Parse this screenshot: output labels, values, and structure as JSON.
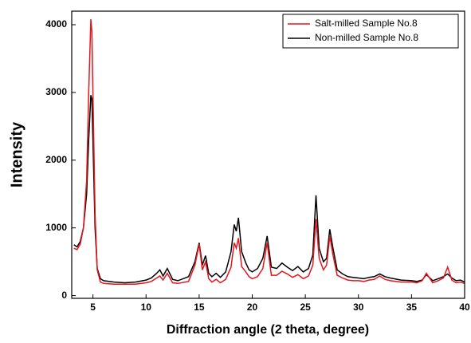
{
  "chart_data": {
    "type": "line",
    "xlabel": "Diffraction angle (2 theta, degree)",
    "ylabel": "Intensity",
    "xlim": [
      3,
      40
    ],
    "ylim": [
      -40,
      4200
    ],
    "xticks": [
      5,
      10,
      15,
      20,
      25,
      30,
      35,
      40
    ],
    "yticks": [
      0,
      1000,
      2000,
      3000,
      4000
    ],
    "legend": "upper right",
    "x": [
      3.2,
      3.5,
      3.8,
      4.1,
      4.4,
      4.6,
      4.8,
      4.9,
      5.0,
      5.2,
      5.4,
      5.7,
      6,
      7,
      8,
      9,
      10,
      10.5,
      11,
      11.3,
      11.6,
      12,
      12.5,
      13,
      14,
      14.6,
      15,
      15.3,
      15.6,
      15.9,
      16.2,
      16.6,
      17,
      17.5,
      18,
      18.3,
      18.5,
      18.7,
      19,
      19.4,
      19.7,
      20,
      20.5,
      21,
      21.4,
      21.8,
      22.3,
      22.8,
      23.3,
      23.8,
      24.3,
      24.8,
      25.3,
      25.7,
      26,
      26.3,
      26.7,
      27,
      27.3,
      27.6,
      28,
      28.5,
      29,
      29.5,
      30,
      30.5,
      31,
      31.5,
      32,
      32.5,
      33,
      34,
      35,
      35.5,
      36,
      36.4,
      37,
      37.5,
      38,
      38.4,
      38.8,
      39.2,
      39.6,
      40
    ],
    "series": [
      {
        "name": "Salt-milled Sample No.8",
        "color": "#e8141c",
        "values": [
          700,
          680,
          760,
          1000,
          1700,
          3000,
          4080,
          3900,
          3000,
          1200,
          380,
          200,
          180,
          170,
          170,
          170,
          190,
          210,
          260,
          290,
          230,
          330,
          190,
          180,
          210,
          450,
          760,
          380,
          500,
          250,
          200,
          240,
          190,
          240,
          420,
          780,
          700,
          850,
          430,
          350,
          280,
          250,
          280,
          400,
          780,
          300,
          300,
          360,
          320,
          270,
          310,
          250,
          290,
          450,
          1130,
          550,
          380,
          450,
          880,
          600,
          300,
          260,
          230,
          220,
          220,
          210,
          230,
          240,
          290,
          240,
          220,
          200,
          200,
          190,
          220,
          330,
          190,
          220,
          260,
          420,
          230,
          190,
          200,
          180
        ]
      },
      {
        "name": "Non-milled Sample No.8",
        "color": "#000000",
        "values": [
          750,
          720,
          800,
          1000,
          1500,
          2300,
          2960,
          2900,
          2300,
          1000,
          400,
          250,
          220,
          200,
          190,
          200,
          230,
          260,
          330,
          380,
          290,
          400,
          240,
          220,
          280,
          500,
          780,
          450,
          590,
          330,
          280,
          330,
          270,
          350,
          650,
          1050,
          950,
          1150,
          650,
          480,
          380,
          350,
          400,
          550,
          880,
          420,
          400,
          480,
          420,
          370,
          430,
          350,
          400,
          600,
          1480,
          700,
          500,
          550,
          980,
          700,
          380,
          320,
          280,
          270,
          260,
          250,
          270,
          280,
          320,
          280,
          260,
          230,
          220,
          210,
          230,
          310,
          220,
          250,
          280,
          320,
          260,
          220,
          230,
          200
        ]
      }
    ]
  }
}
